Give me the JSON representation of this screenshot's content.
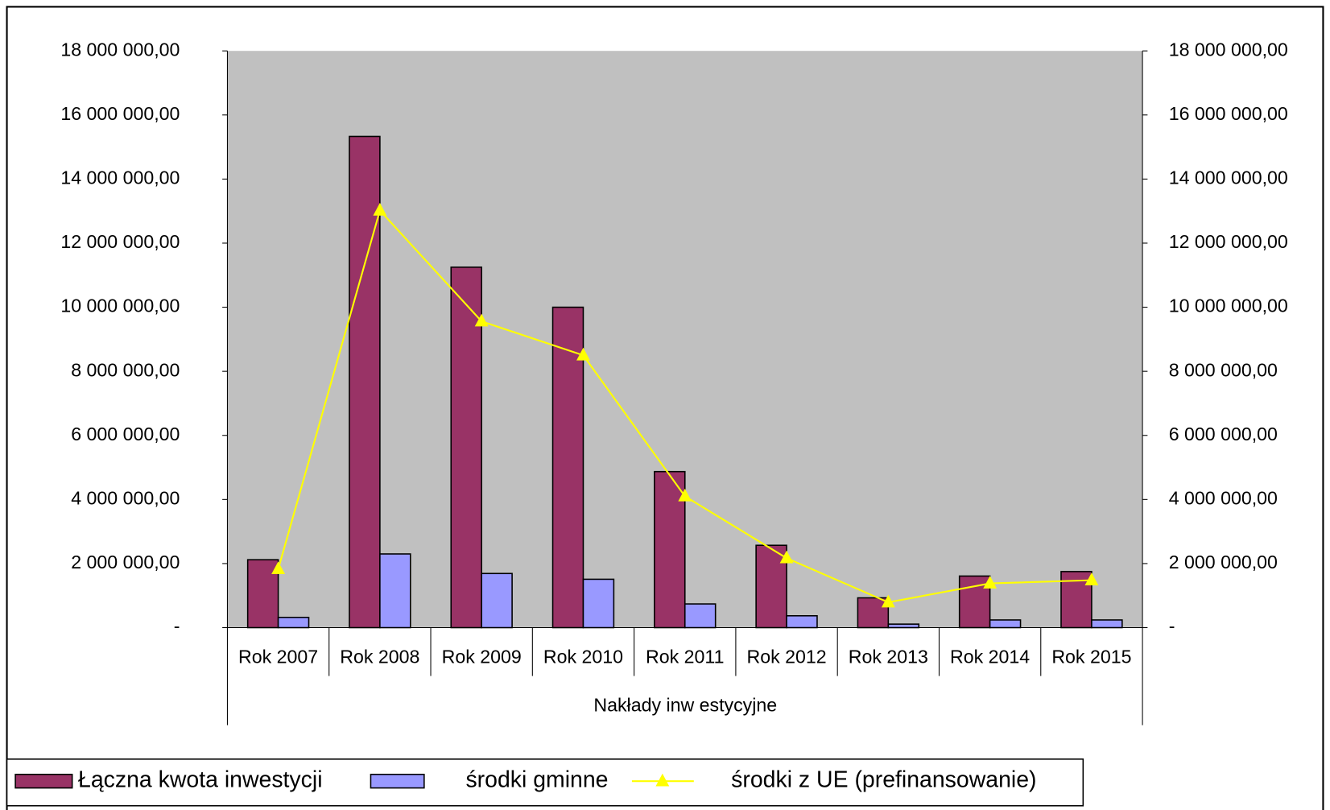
{
  "chart_data": {
    "type": "bar",
    "x_label": "Nakłady inw estycyjne",
    "categories": [
      "Rok 2007",
      "Rok 2008",
      "Rok 2009",
      "Rok 2010",
      "Rok 2011",
      "Rok 2012",
      "Rok 2013",
      "Rok 2014",
      "Rok 2015"
    ],
    "series": [
      {
        "name": "Łączna kwota inwestycji",
        "color": "#993366",
        "type": "bar",
        "values": [
          2120000,
          15330000,
          11250000,
          10000000,
          4870000,
          2570000,
          930000,
          1610000,
          1750000
        ]
      },
      {
        "name": "środki gminne",
        "color": "#9999ff",
        "type": "bar",
        "values": [
          320000,
          2300000,
          1690000,
          1510000,
          740000,
          370000,
          110000,
          240000,
          240000
        ]
      },
      {
        "name": "środki z UE (prefinansowanie)",
        "color": "#ffff00",
        "type": "line",
        "axis": "y2",
        "values": [
          1830000,
          13020000,
          9560000,
          8500000,
          4100000,
          2170000,
          790000,
          1380000,
          1480000
        ]
      }
    ],
    "ylim": [
      0,
      18000000
    ],
    "yticks": [
      {
        "value": 0,
        "label": "-"
      },
      {
        "value": 2000000,
        "label": "2 000 000,00"
      },
      {
        "value": 4000000,
        "label": "4 000 000,00"
      },
      {
        "value": 6000000,
        "label": "6 000 000,00"
      },
      {
        "value": 8000000,
        "label": "8 000 000,00"
      },
      {
        "value": 10000000,
        "label": "10 000 000,00"
      },
      {
        "value": 12000000,
        "label": "12 000 000,00"
      },
      {
        "value": 14000000,
        "label": "14 000 000,00"
      },
      {
        "value": 16000000,
        "label": "16 000 000,00"
      },
      {
        "value": 18000000,
        "label": "18 000 000,00"
      }
    ],
    "y2lim": [
      0,
      18000000
    ],
    "y2ticks": [
      {
        "value": 0,
        "label": "-"
      },
      {
        "value": 2000000,
        "label": "2 000 000,00"
      },
      {
        "value": 4000000,
        "label": "4 000 000,00"
      },
      {
        "value": 6000000,
        "label": "6 000 000,00"
      },
      {
        "value": 8000000,
        "label": "8 000 000,00"
      },
      {
        "value": 10000000,
        "label": "10 000 000,00"
      },
      {
        "value": 12000000,
        "label": "12 000 000,00"
      },
      {
        "value": 14000000,
        "label": "14 000 000,00"
      },
      {
        "value": 16000000,
        "label": "16 000 000,00"
      },
      {
        "value": 18000000,
        "label": "18 000 000,00"
      }
    ],
    "plot_background": "#c0c0c0",
    "legend": "bottom"
  }
}
